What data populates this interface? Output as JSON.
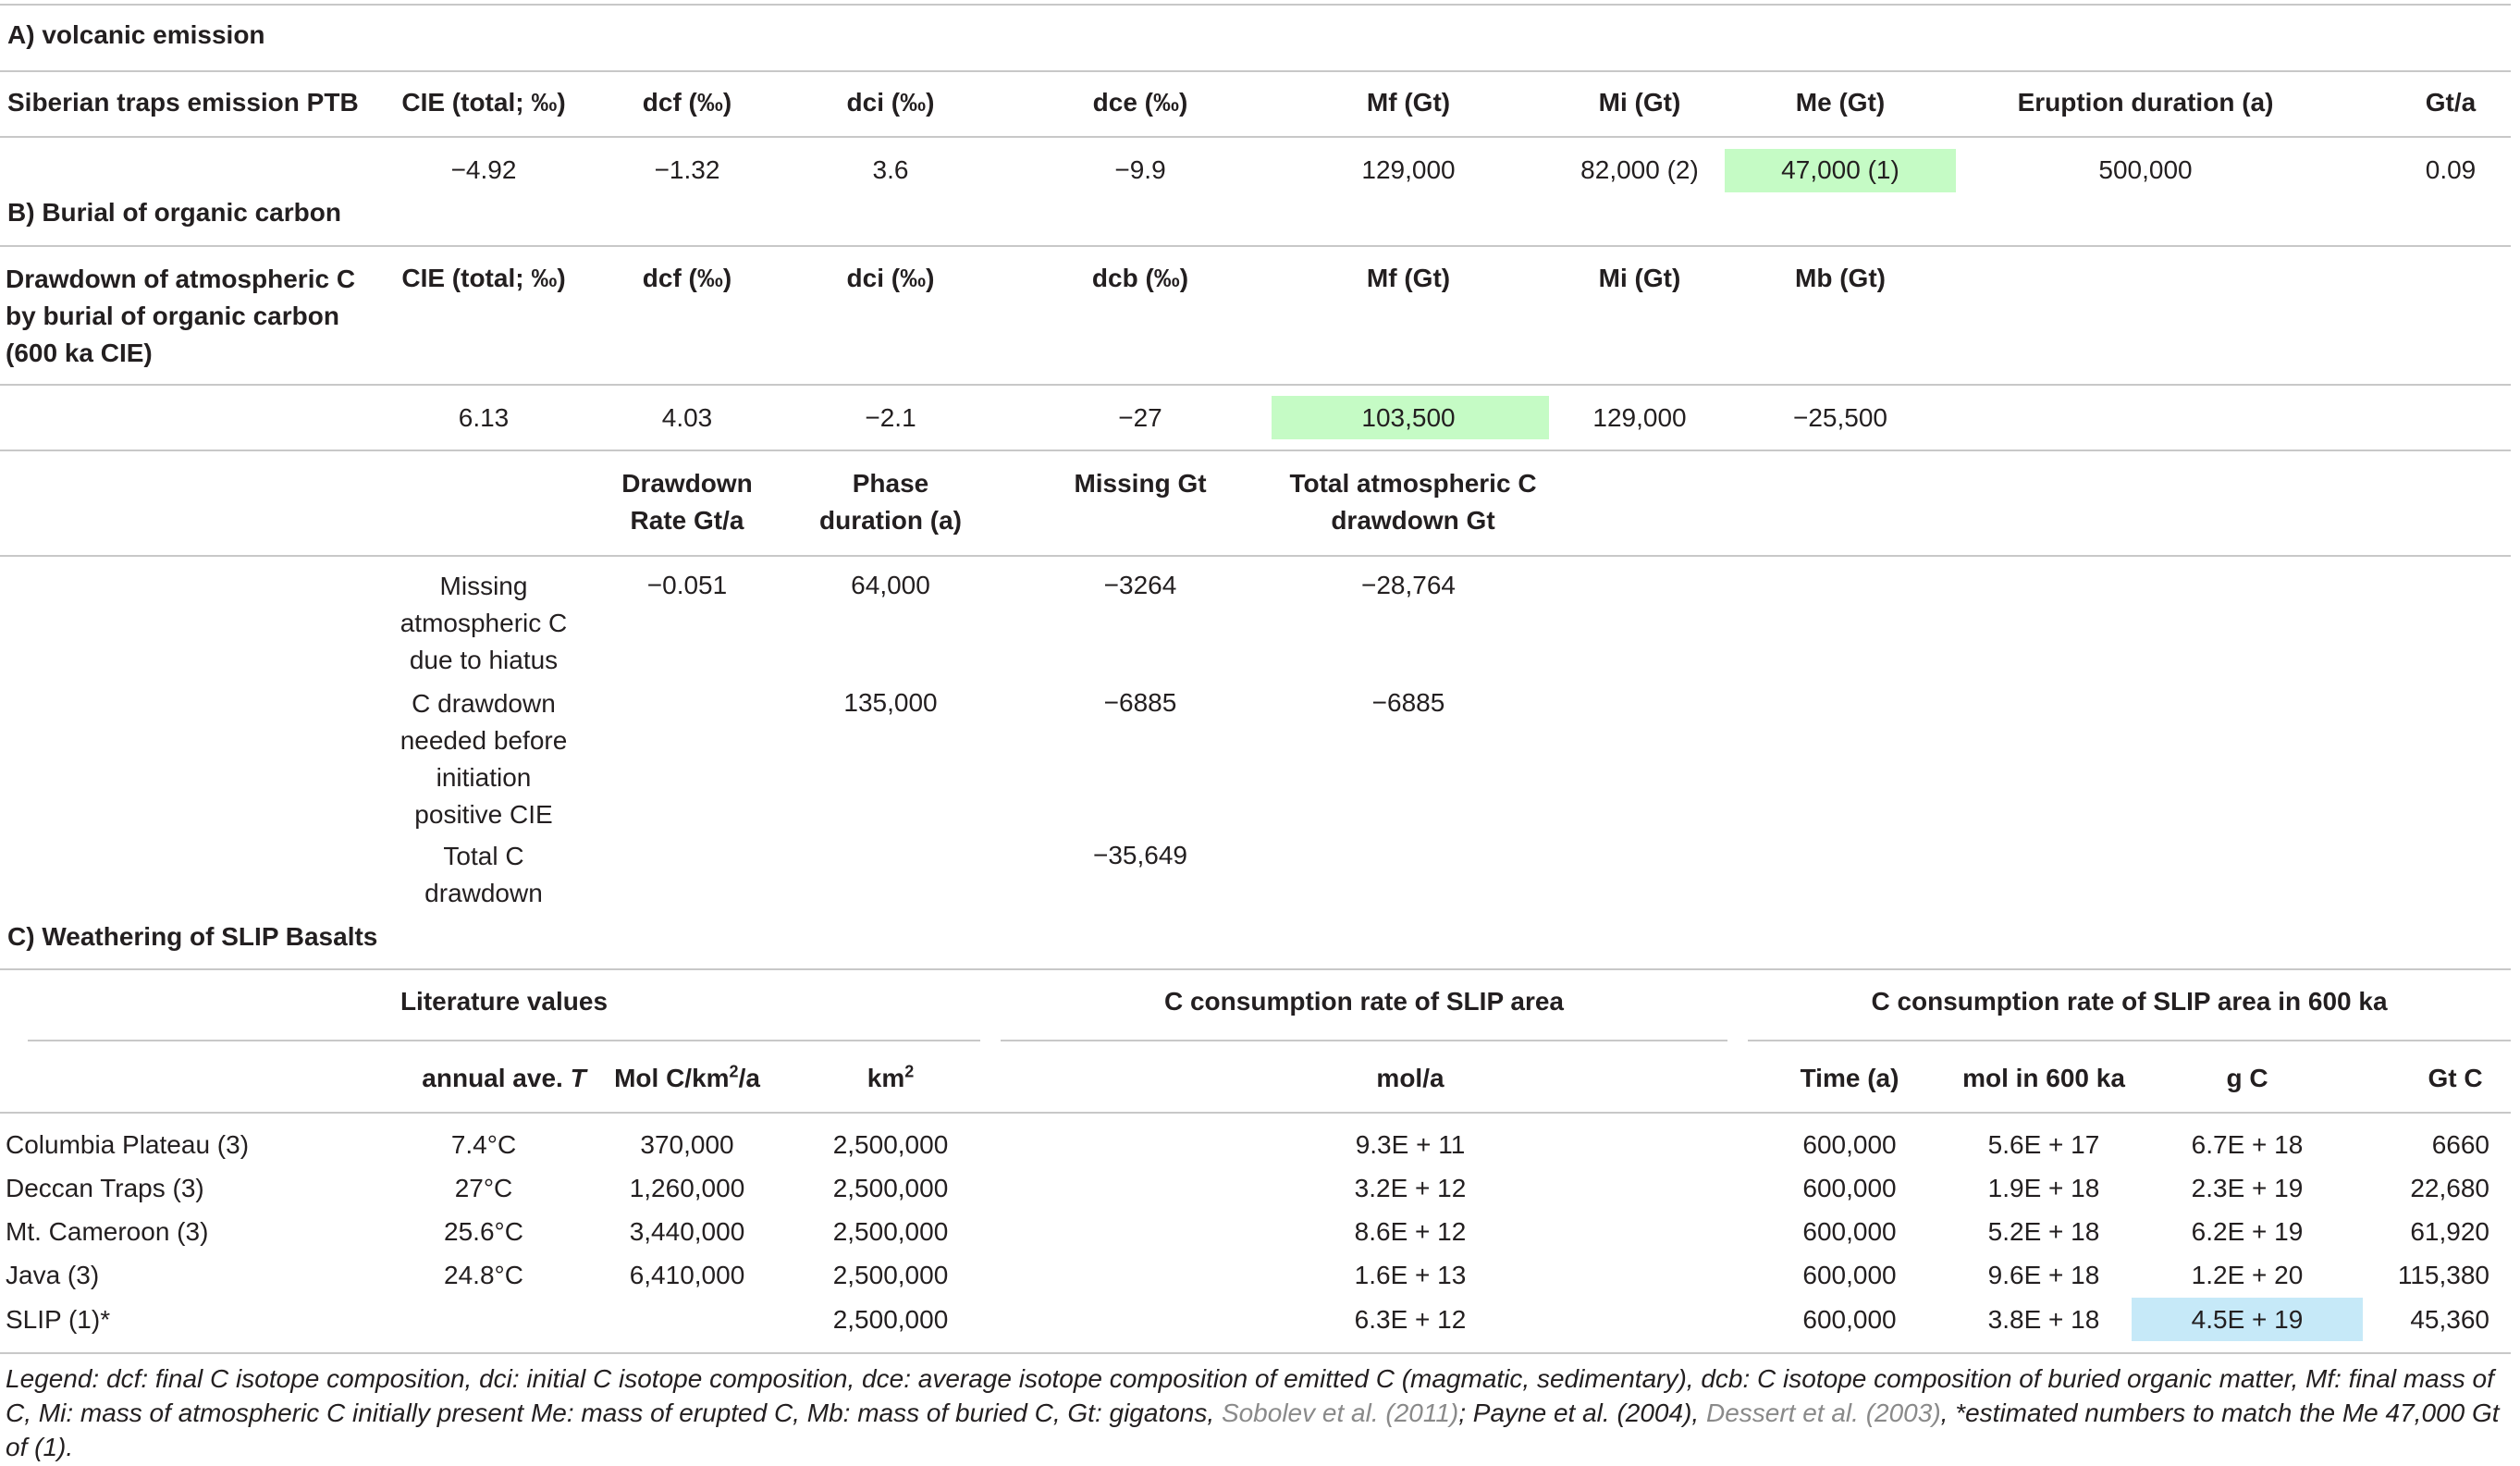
{
  "sectionA": {
    "title": "A) volcanic emission",
    "headers": [
      "Siberian traps emission PTB",
      "CIE (total; ‰)",
      "dcf (‰)",
      "dci (‰)",
      "dce (‰)",
      "Mf (Gt)",
      "Mi (Gt)",
      "Me (Gt)",
      "Eruption duration (a)",
      "Gt/a"
    ],
    "values": [
      "",
      "−4.92",
      "−1.32",
      "3.6",
      "−9.9",
      "129,000",
      "82,000 (2)",
      "47,000 (1)",
      "500,000",
      "0.09"
    ]
  },
  "sectionB": {
    "title": "B) Burial of organic carbon",
    "headers": [
      "Drawdown of atmospheric C by burial of organic carbon (600 ka CIE)",
      "CIE (total; ‰)",
      "dcf (‰)",
      "dci (‰)",
      "dcb (‰)",
      "Mf (Gt)",
      "Mi (Gt)",
      "Mb (Gt)"
    ],
    "values": [
      "",
      "6.13",
      "4.03",
      "−2.1",
      "−27",
      "103,500",
      "129,000",
      "−25,500"
    ],
    "subheaders": [
      "Drawdown Rate Gt/a",
      "Phase duration (a)",
      "Missing Gt",
      "Total atmospheric C drawdown Gt"
    ],
    "rows": [
      {
        "label": "Missing atmospheric C due to hiatus",
        "rate": "−0.051",
        "duration": "64,000",
        "missing": "−3264",
        "total": "−28,764"
      },
      {
        "label": "C drawdown needed before initiation positive CIE",
        "rate": "",
        "duration": "135,000",
        "missing": "−6885",
        "total": "−6885"
      },
      {
        "label": "Total C drawdown",
        "rate": "",
        "duration": "",
        "missing": "−35,649",
        "total": ""
      }
    ]
  },
  "sectionC": {
    "title": "C) Weathering of SLIP Basalts",
    "group1": "Literature values",
    "group2": "C consumption rate of SLIP area",
    "group3": "C consumption rate of SLIP area in 600 ka",
    "col_temp_prefix": "annual ave. ",
    "col_temp_var": "T",
    "col_mol_prefix": "Mol C/km",
    "col_mol_sup": "2",
    "col_mol_suffix": "/a",
    "col_km": "km",
    "col_km_sup": "2",
    "col_mola": "mol/a",
    "col_time": "Time (a)",
    "col_mol600": "mol in 600 ka",
    "col_gc": "g C",
    "col_gtc": "Gt C",
    "rows": [
      {
        "name": "Columbia Plateau (3)",
        "temp": "7.4°C",
        "mol": "370,000",
        "km": "2,500,000",
        "mola": "9.3E + 11",
        "time": "600,000",
        "mol600": "5.6E + 17",
        "gc": "6.7E + 18",
        "gtc": "6660"
      },
      {
        "name": "Deccan Traps (3)",
        "temp": "27°C",
        "mol": "1,260,000",
        "km": "2,500,000",
        "mola": "3.2E + 12",
        "time": "600,000",
        "mol600": "1.9E + 18",
        "gc": "2.3E + 19",
        "gtc": "22,680"
      },
      {
        "name": "Mt. Cameroon (3)",
        "temp": "25.6°C",
        "mol": "3,440,000",
        "km": "2,500,000",
        "mola": "8.6E + 12",
        "time": "600,000",
        "mol600": "5.2E + 18",
        "gc": "6.2E + 19",
        "gtc": "61,920"
      },
      {
        "name": "Java (3)",
        "temp": "24.8°C",
        "mol": "6,410,000",
        "km": "2,500,000",
        "mola": "1.6E + 13",
        "time": "600,000",
        "mol600": "9.6E + 18",
        "gc": "1.2E + 20",
        "gtc": "115,380"
      },
      {
        "name": "SLIP (1)*",
        "temp": "",
        "mol": "",
        "km": "2,500,000",
        "mola": "6.3E + 12",
        "time": "600,000",
        "mol600": "3.8E + 18",
        "gc": "4.5E + 19",
        "gtc": "45,360"
      }
    ]
  },
  "legend": {
    "text1": "Legend: dcf: final C isotope composition, dci: initial C isotope composition, dce: average isotope composition of emitted C (magmatic, sedimentary), dcb: C isotope composition of buried organic matter, Mf: final mass of C, Mi: mass of atmospheric C initially present Me: mass of erupted C, Mb: mass of buried C, Gt: gigatons, ",
    "ref1": "Sobolev et al. (2011)",
    "text2": "; Payne et al. (2004), ",
    "ref2": "Dessert et al. (2003)",
    "text3": ", *estimated numbers to match the Me 47,000 Gt of (1)."
  },
  "colors": {
    "highlight_green": "#c5fbc5",
    "highlight_blue": "#c6e9f8",
    "rule": "#c8c8c8"
  }
}
